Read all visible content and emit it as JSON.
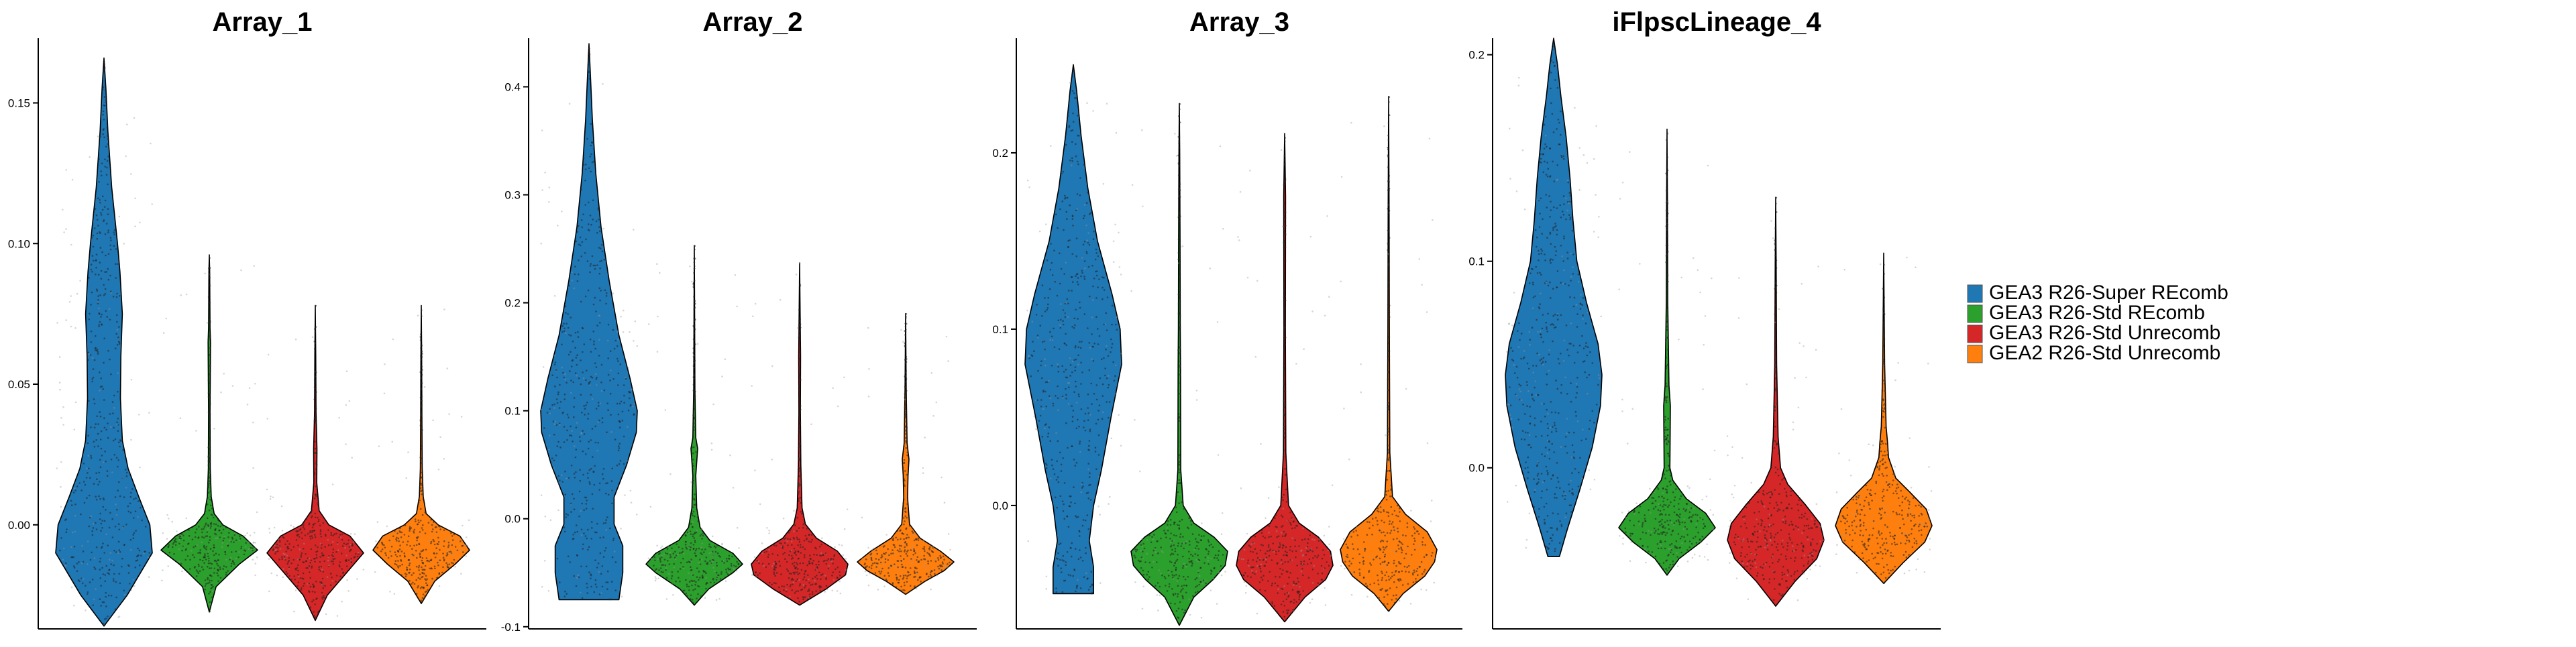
{
  "chart_data": [
    {
      "type": "violin",
      "title": "Array_1",
      "xlabel": "",
      "ylabel": "",
      "ylim": [
        -0.037,
        0.173
      ],
      "yticks": [
        0.0,
        0.05,
        0.1,
        0.15
      ],
      "ytick_labels": [
        "0.00",
        "0.05",
        "0.10",
        "0.15"
      ],
      "grid": false,
      "series": [
        {
          "name": "GEA3 R26-Super REcomb",
          "min": -0.036,
          "max": 0.166,
          "profile": [
            [
              -0.036,
              0
            ],
            [
              -0.025,
              0.48
            ],
            [
              -0.01,
              1.0
            ],
            [
              0.0,
              0.95
            ],
            [
              0.01,
              0.72
            ],
            [
              0.02,
              0.5
            ],
            [
              0.03,
              0.38
            ],
            [
              0.045,
              0.34
            ],
            [
              0.06,
              0.35
            ],
            [
              0.075,
              0.38
            ],
            [
              0.09,
              0.33
            ],
            [
              0.1,
              0.28
            ],
            [
              0.12,
              0.16
            ],
            [
              0.14,
              0.08
            ],
            [
              0.155,
              0.04
            ],
            [
              0.166,
              0
            ]
          ]
        },
        {
          "name": "GEA3 R26-Std REcomb",
          "min": -0.031,
          "max": 0.096,
          "profile": [
            [
              -0.031,
              0
            ],
            [
              -0.022,
              0.14
            ],
            [
              -0.014,
              0.62
            ],
            [
              -0.009,
              1.0
            ],
            [
              -0.004,
              0.7
            ],
            [
              0.0,
              0.28
            ],
            [
              0.004,
              0.1
            ],
            [
              0.01,
              0.04
            ],
            [
              0.02,
              0.02
            ],
            [
              0.04,
              0.015
            ],
            [
              0.065,
              0.025
            ],
            [
              0.07,
              0.015
            ],
            [
              0.09,
              0.008
            ],
            [
              0.096,
              0
            ]
          ]
        },
        {
          "name": "GEA3 R26-Std Unrecomb",
          "min": -0.034,
          "max": 0.078,
          "profile": [
            [
              -0.034,
              0
            ],
            [
              -0.025,
              0.25
            ],
            [
              -0.016,
              0.7
            ],
            [
              -0.01,
              1.0
            ],
            [
              -0.004,
              0.72
            ],
            [
              0.0,
              0.28
            ],
            [
              0.005,
              0.08
            ],
            [
              0.015,
              0.03
            ],
            [
              0.027,
              0.035
            ],
            [
              0.04,
              0.015
            ],
            [
              0.06,
              0.01
            ],
            [
              0.078,
              0
            ]
          ]
        },
        {
          "name": "GEA2 R26-Std Unrecomb",
          "min": -0.028,
          "max": 0.078,
          "profile": [
            [
              -0.028,
              0
            ],
            [
              -0.02,
              0.28
            ],
            [
              -0.014,
              0.7
            ],
            [
              -0.009,
              1.0
            ],
            [
              -0.004,
              0.8
            ],
            [
              0.0,
              0.35
            ],
            [
              0.004,
              0.1
            ],
            [
              0.01,
              0.04
            ],
            [
              0.02,
              0.02
            ],
            [
              0.04,
              0.012
            ],
            [
              0.06,
              0.008
            ],
            [
              0.078,
              0
            ]
          ]
        }
      ]
    },
    {
      "type": "violin",
      "title": "Array_2",
      "xlabel": "",
      "ylabel": "",
      "ylim": [
        -0.102,
        0.445
      ],
      "yticks": [
        -0.1,
        0.0,
        0.1,
        0.2,
        0.3,
        0.4
      ],
      "ytick_labels": [
        "-0.1",
        "0.0",
        "0.1",
        "0.2",
        "0.3",
        "0.4"
      ],
      "grid": false,
      "series": [
        {
          "name": "GEA3 R26-Super REcomb",
          "min": -0.075,
          "max": 0.44,
          "profile": [
            [
              -0.075,
              0.62
            ],
            [
              -0.05,
              0.7
            ],
            [
              -0.025,
              0.7
            ],
            [
              -0.005,
              0.52
            ],
            [
              0.02,
              0.52
            ],
            [
              0.05,
              0.78
            ],
            [
              0.08,
              0.98
            ],
            [
              0.1,
              1.0
            ],
            [
              0.13,
              0.85
            ],
            [
              0.17,
              0.62
            ],
            [
              0.22,
              0.42
            ],
            [
              0.27,
              0.25
            ],
            [
              0.32,
              0.14
            ],
            [
              0.37,
              0.07
            ],
            [
              0.41,
              0.03
            ],
            [
              0.44,
              0
            ]
          ]
        },
        {
          "name": "GEA3 R26-Std REcomb",
          "min": -0.08,
          "max": 0.253,
          "profile": [
            [
              -0.08,
              0
            ],
            [
              -0.065,
              0.3
            ],
            [
              -0.05,
              0.8
            ],
            [
              -0.042,
              1.0
            ],
            [
              -0.032,
              0.8
            ],
            [
              -0.02,
              0.32
            ],
            [
              -0.008,
              0.12
            ],
            [
              0.01,
              0.05
            ],
            [
              0.04,
              0.03
            ],
            [
              0.065,
              0.07
            ],
            [
              0.075,
              0.03
            ],
            [
              0.12,
              0.012
            ],
            [
              0.2,
              0.006
            ],
            [
              0.253,
              0
            ]
          ]
        },
        {
          "name": "GEA3 R26-Std Unrecomb",
          "min": -0.08,
          "max": 0.237,
          "profile": [
            [
              -0.08,
              0
            ],
            [
              -0.065,
              0.55
            ],
            [
              -0.052,
              0.95
            ],
            [
              -0.042,
              1.0
            ],
            [
              -0.03,
              0.78
            ],
            [
              -0.018,
              0.35
            ],
            [
              -0.005,
              0.12
            ],
            [
              0.01,
              0.05
            ],
            [
              0.05,
              0.025
            ],
            [
              0.1,
              0.015
            ],
            [
              0.15,
              0.02
            ],
            [
              0.2,
              0.008
            ],
            [
              0.237,
              0
            ]
          ]
        },
        {
          "name": "GEA2 R26-Std Unrecomb",
          "min": -0.07,
          "max": 0.19,
          "profile": [
            [
              -0.07,
              0
            ],
            [
              -0.058,
              0.4
            ],
            [
              -0.048,
              0.8
            ],
            [
              -0.04,
              1.0
            ],
            [
              -0.03,
              0.72
            ],
            [
              -0.018,
              0.3
            ],
            [
              -0.005,
              0.08
            ],
            [
              0.02,
              0.04
            ],
            [
              0.04,
              0.05
            ],
            [
              0.055,
              0.07
            ],
            [
              0.07,
              0.03
            ],
            [
              0.12,
              0.012
            ],
            [
              0.19,
              0
            ]
          ]
        }
      ]
    },
    {
      "type": "violin",
      "title": "Array_3",
      "xlabel": "",
      "ylabel": "",
      "ylim": [
        -0.07,
        0.265
      ],
      "yticks": [
        0.0,
        0.1,
        0.2
      ],
      "ytick_labels": [
        "0.0",
        "0.1",
        "0.2"
      ],
      "grid": false,
      "series": [
        {
          "name": "GEA3 R26-Super REcomb",
          "min": -0.05,
          "max": 0.25,
          "profile": [
            [
              -0.05,
              0.42
            ],
            [
              -0.035,
              0.42
            ],
            [
              -0.02,
              0.33
            ],
            [
              0.0,
              0.42
            ],
            [
              0.02,
              0.58
            ],
            [
              0.05,
              0.78
            ],
            [
              0.08,
              1.0
            ],
            [
              0.1,
              0.97
            ],
            [
              0.12,
              0.8
            ],
            [
              0.15,
              0.5
            ],
            [
              0.18,
              0.3
            ],
            [
              0.21,
              0.16
            ],
            [
              0.235,
              0.07
            ],
            [
              0.25,
              0
            ]
          ]
        },
        {
          "name": "GEA3 R26-Std REcomb",
          "min": -0.068,
          "max": 0.228,
          "profile": [
            [
              -0.068,
              0
            ],
            [
              -0.052,
              0.3
            ],
            [
              -0.042,
              0.7
            ],
            [
              -0.034,
              0.95
            ],
            [
              -0.026,
              1.0
            ],
            [
              -0.018,
              0.72
            ],
            [
              -0.01,
              0.3
            ],
            [
              0.0,
              0.08
            ],
            [
              0.02,
              0.03
            ],
            [
              0.08,
              0.025
            ],
            [
              0.1,
              0.02
            ],
            [
              0.15,
              0.015
            ],
            [
              0.2,
              0.008
            ],
            [
              0.228,
              0
            ]
          ]
        },
        {
          "name": "GEA3 R26-Std Unrecomb",
          "min": -0.066,
          "max": 0.211,
          "profile": [
            [
              -0.066,
              0
            ],
            [
              -0.052,
              0.42
            ],
            [
              -0.042,
              0.85
            ],
            [
              -0.034,
              1.0
            ],
            [
              -0.026,
              0.95
            ],
            [
              -0.018,
              0.7
            ],
            [
              -0.01,
              0.3
            ],
            [
              0.0,
              0.08
            ],
            [
              0.03,
              0.025
            ],
            [
              0.1,
              0.015
            ],
            [
              0.175,
              0.02
            ],
            [
              0.211,
              0
            ]
          ]
        },
        {
          "name": "GEA2 R26-Std Unrecomb",
          "min": -0.06,
          "max": 0.232,
          "profile": [
            [
              -0.06,
              0
            ],
            [
              -0.05,
              0.3
            ],
            [
              -0.04,
              0.75
            ],
            [
              -0.032,
              0.95
            ],
            [
              -0.025,
              1.0
            ],
            [
              -0.015,
              0.8
            ],
            [
              -0.005,
              0.35
            ],
            [
              0.005,
              0.08
            ],
            [
              0.03,
              0.025
            ],
            [
              0.1,
              0.015
            ],
            [
              0.17,
              0.01
            ],
            [
              0.232,
              0
            ]
          ]
        }
      ]
    },
    {
      "type": "violin",
      "title": "iFlpscLineage_4",
      "xlabel": "",
      "ylabel": "",
      "ylim": [
        -0.078,
        0.208
      ],
      "yticks": [
        0.0,
        0.1,
        0.2
      ],
      "ytick_labels": [
        "0.0",
        "0.1",
        "0.2"
      ],
      "grid": false,
      "series": [
        {
          "name": "GEA3 R26-Super REcomb",
          "min": -0.043,
          "max": 0.208,
          "profile": [
            [
              -0.043,
              0.12
            ],
            [
              -0.03,
              0.28
            ],
            [
              -0.01,
              0.55
            ],
            [
              0.01,
              0.8
            ],
            [
              0.03,
              0.97
            ],
            [
              0.045,
              1.0
            ],
            [
              0.06,
              0.92
            ],
            [
              0.08,
              0.68
            ],
            [
              0.1,
              0.48
            ],
            [
              0.12,
              0.4
            ],
            [
              0.14,
              0.34
            ],
            [
              0.16,
              0.26
            ],
            [
              0.18,
              0.15
            ],
            [
              0.195,
              0.08
            ],
            [
              0.208,
              0
            ]
          ]
        },
        {
          "name": "GEA3 R26-Std REcomb",
          "min": -0.052,
          "max": 0.164,
          "profile": [
            [
              -0.052,
              0
            ],
            [
              -0.044,
              0.25
            ],
            [
              -0.036,
              0.7
            ],
            [
              -0.029,
              1.0
            ],
            [
              -0.022,
              0.8
            ],
            [
              -0.015,
              0.4
            ],
            [
              -0.006,
              0.12
            ],
            [
              0.0,
              0.06
            ],
            [
              0.03,
              0.07
            ],
            [
              0.04,
              0.04
            ],
            [
              0.08,
              0.015
            ],
            [
              0.13,
              0.008
            ],
            [
              0.164,
              0
            ]
          ]
        },
        {
          "name": "GEA3 R26-Std Unrecomb",
          "min": -0.067,
          "max": 0.131,
          "profile": [
            [
              -0.067,
              0
            ],
            [
              -0.055,
              0.4
            ],
            [
              -0.044,
              0.85
            ],
            [
              -0.035,
              1.0
            ],
            [
              -0.027,
              0.92
            ],
            [
              -0.018,
              0.62
            ],
            [
              -0.008,
              0.25
            ],
            [
              0.0,
              0.1
            ],
            [
              0.015,
              0.05
            ],
            [
              0.05,
              0.02
            ],
            [
              0.1,
              0.01
            ],
            [
              0.131,
              0
            ]
          ]
        },
        {
          "name": "GEA2 R26-Std Unrecomb",
          "min": -0.056,
          "max": 0.104,
          "profile": [
            [
              -0.056,
              0
            ],
            [
              -0.046,
              0.4
            ],
            [
              -0.036,
              0.85
            ],
            [
              -0.028,
              1.0
            ],
            [
              -0.02,
              0.88
            ],
            [
              -0.012,
              0.55
            ],
            [
              -0.005,
              0.25
            ],
            [
              0.005,
              0.1
            ],
            [
              0.012,
              0.08
            ],
            [
              0.02,
              0.05
            ],
            [
              0.05,
              0.02
            ],
            [
              0.104,
              0
            ]
          ]
        }
      ]
    }
  ],
  "legend": {
    "placement": "right",
    "items": [
      {
        "label": "GEA3 R26-Super REcomb",
        "color": "#1f77b4"
      },
      {
        "label": "GEA3 R26-Std REcomb",
        "color": "#2ca02c"
      },
      {
        "label": "GEA3 R26-Std Unrecomb",
        "color": "#d62728"
      },
      {
        "label": "GEA2 R26-Std Unrecomb",
        "color": "#ff7f0e"
      }
    ]
  }
}
